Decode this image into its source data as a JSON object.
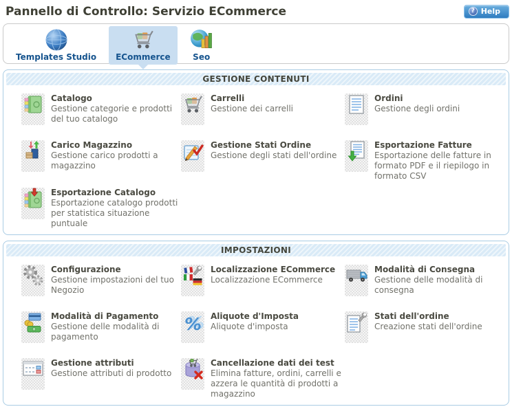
{
  "page": {
    "title": "Pannello di Controllo: Servizio ECommerce"
  },
  "header": {
    "help_label": "Help",
    "help_icon": "question-circle-icon"
  },
  "toolbar": {
    "tabs": [
      {
        "label": "Templates Studio",
        "icon": "globe-icon",
        "selected": false
      },
      {
        "label": "ECommerce",
        "icon": "shopping-cart-icon",
        "selected": true
      },
      {
        "label": "Seo",
        "icon": "seo-globe-chart-icon",
        "selected": false
      }
    ]
  },
  "sections": [
    {
      "title": "GESTIONE CONTENUTI",
      "items": [
        {
          "title": "Catalogo",
          "description": "Gestione categorie e prodotti del tuo catalogo",
          "icon": "catalog-book-icon"
        },
        {
          "title": "Carrelli",
          "description": "Gestione dei carrelli",
          "icon": "shopping-cart-icon"
        },
        {
          "title": "Ordini",
          "description": "Gestione degli ordini",
          "icon": "order-document-icon"
        },
        {
          "title": "Carico Magazzino",
          "description": "Gestione carico prodotti a magazzino",
          "icon": "warehouse-load-icon"
        },
        {
          "title": "Gestione Stati Ordine",
          "description": "Gestione degli stati dell'ordine",
          "icon": "notepad-check-icon"
        },
        {
          "title": "Esportazione Fatture",
          "description": "Esportazione delle fatture in formato PDF e il riepilogo in formato CSV",
          "icon": "invoice-export-icon"
        },
        {
          "title": "Esportazione Catalogo",
          "description": "Esportazione catalogo prodotti per statistica situazione puntuale",
          "icon": "catalog-export-icon"
        }
      ]
    },
    {
      "title": "IMPOSTAZIONI",
      "items": [
        {
          "title": "Configurazione",
          "description": "Gestione impostazioni del tuo Negozio",
          "icon": "gears-icon"
        },
        {
          "title": "Localizzazione ECommerce",
          "description": "Localizzazione ECommerce",
          "icon": "flags-wrench-icon"
        },
        {
          "title": "Modalità di Consegna",
          "description": "Gestione delle modalità di consegna",
          "icon": "delivery-truck-icon"
        },
        {
          "title": "Modalità di Pagamento",
          "description": "Gestione delle modalità di pagamento",
          "icon": "payment-money-icon"
        },
        {
          "title": "Aliquote d'Imposta",
          "description": "Aliquote d'imposta",
          "icon": "percent-icon"
        },
        {
          "title": "Stati dell'ordine",
          "description": "Creazione stati dell'ordine",
          "icon": "document-wrench-icon"
        },
        {
          "title": "Gestione attributi",
          "description": "Gestione attributi di prodotto",
          "icon": "attributes-form-icon"
        },
        {
          "title": "Cancellazione dati dei test",
          "description": "Elimina fatture, ordini, carrelli e azzera le quantità di prodotti a magazzino",
          "icon": "database-delete-icon"
        }
      ]
    }
  ],
  "colors": {
    "page_heading": "#3f4035",
    "accent_blue": "#16548e",
    "selected_tab_bg": "#c9def1",
    "section_border": "#a9cce4",
    "section_header_bg": "#d9eaf7",
    "section_title_text": "#43453b",
    "title_text": "#4a4a41",
    "description_text": "#71716a",
    "help_top": "#6aaede",
    "help_bottom": "#2f7cc0"
  }
}
